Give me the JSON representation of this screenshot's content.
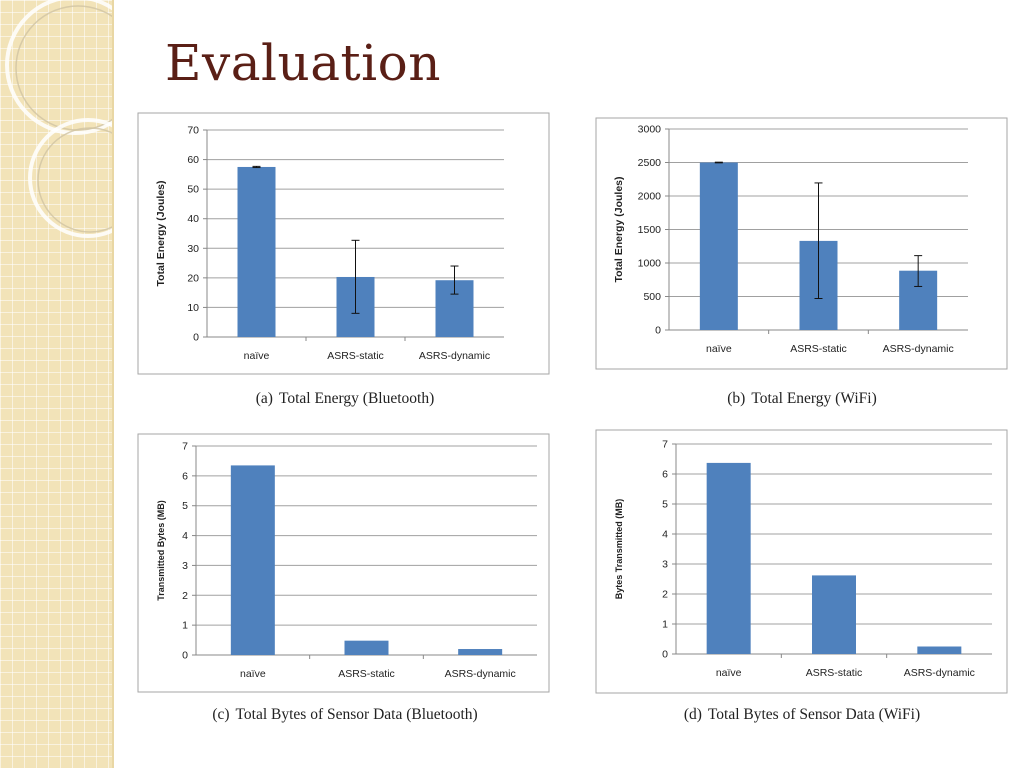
{
  "slide": {
    "title": "Evaluation",
    "colors": {
      "bar": "#4f81bd",
      "title": "#5a1f16",
      "sidebar": "#f2e3b8"
    }
  },
  "captions": [
    {
      "num": "(a)",
      "text": "Total Energy (Bluetooth)"
    },
    {
      "num": "(b)",
      "text": "Total Energy (WiFi)"
    },
    {
      "num": "(c)",
      "text": "Total Bytes of Sensor Data (Bluetooth)"
    },
    {
      "num": "(d)",
      "text": "Total Bytes of Sensor Data (WiFi)"
    }
  ],
  "chart_data": [
    {
      "type": "bar",
      "title": "",
      "ylabel": "Total Energy (Joules)",
      "xlabel": "",
      "categories": [
        "naïve",
        "ASRS-static",
        "ASRS-dynamic"
      ],
      "values": [
        57.5,
        20.3,
        19.2
      ],
      "error_low": [
        57.3,
        8.0,
        14.5
      ],
      "error_high": [
        57.7,
        32.7,
        24.0
      ],
      "ylim": [
        0,
        70
      ],
      "yticks": [
        0,
        10,
        20,
        30,
        40,
        50,
        60,
        70
      ],
      "grid": true
    },
    {
      "type": "bar",
      "title": "",
      "ylabel": "Total Energy (Joules)",
      "xlabel": "",
      "categories": [
        "naïve",
        "ASRS-static",
        "ASRS-dynamic"
      ],
      "values": [
        2500,
        1330,
        885
      ],
      "error_low": [
        2495,
        470,
        650
      ],
      "error_high": [
        2505,
        2195,
        1110
      ],
      "ylim": [
        0,
        3000
      ],
      "yticks": [
        0,
        500,
        1000,
        1500,
        2000,
        2500,
        3000
      ],
      "grid": true
    },
    {
      "type": "bar",
      "title": "",
      "ylabel": "Transmitted Bytes (MB)",
      "xlabel": "",
      "categories": [
        "naïve",
        "ASRS-static",
        "ASRS-dynamic"
      ],
      "values": [
        6.35,
        0.48,
        0.2
      ],
      "ylim": [
        0,
        7
      ],
      "yticks": [
        0,
        1,
        2,
        3,
        4,
        5,
        6,
        7
      ],
      "grid": true
    },
    {
      "type": "bar",
      "title": "",
      "ylabel": "Bytes Transmitted  (MB)",
      "xlabel": "",
      "categories": [
        "naïve",
        "ASRS-static",
        "ASRS-dynamic"
      ],
      "values": [
        6.37,
        2.62,
        0.25
      ],
      "ylim": [
        0,
        7
      ],
      "yticks": [
        0,
        1,
        2,
        3,
        4,
        5,
        6,
        7
      ],
      "grid": true
    }
  ]
}
